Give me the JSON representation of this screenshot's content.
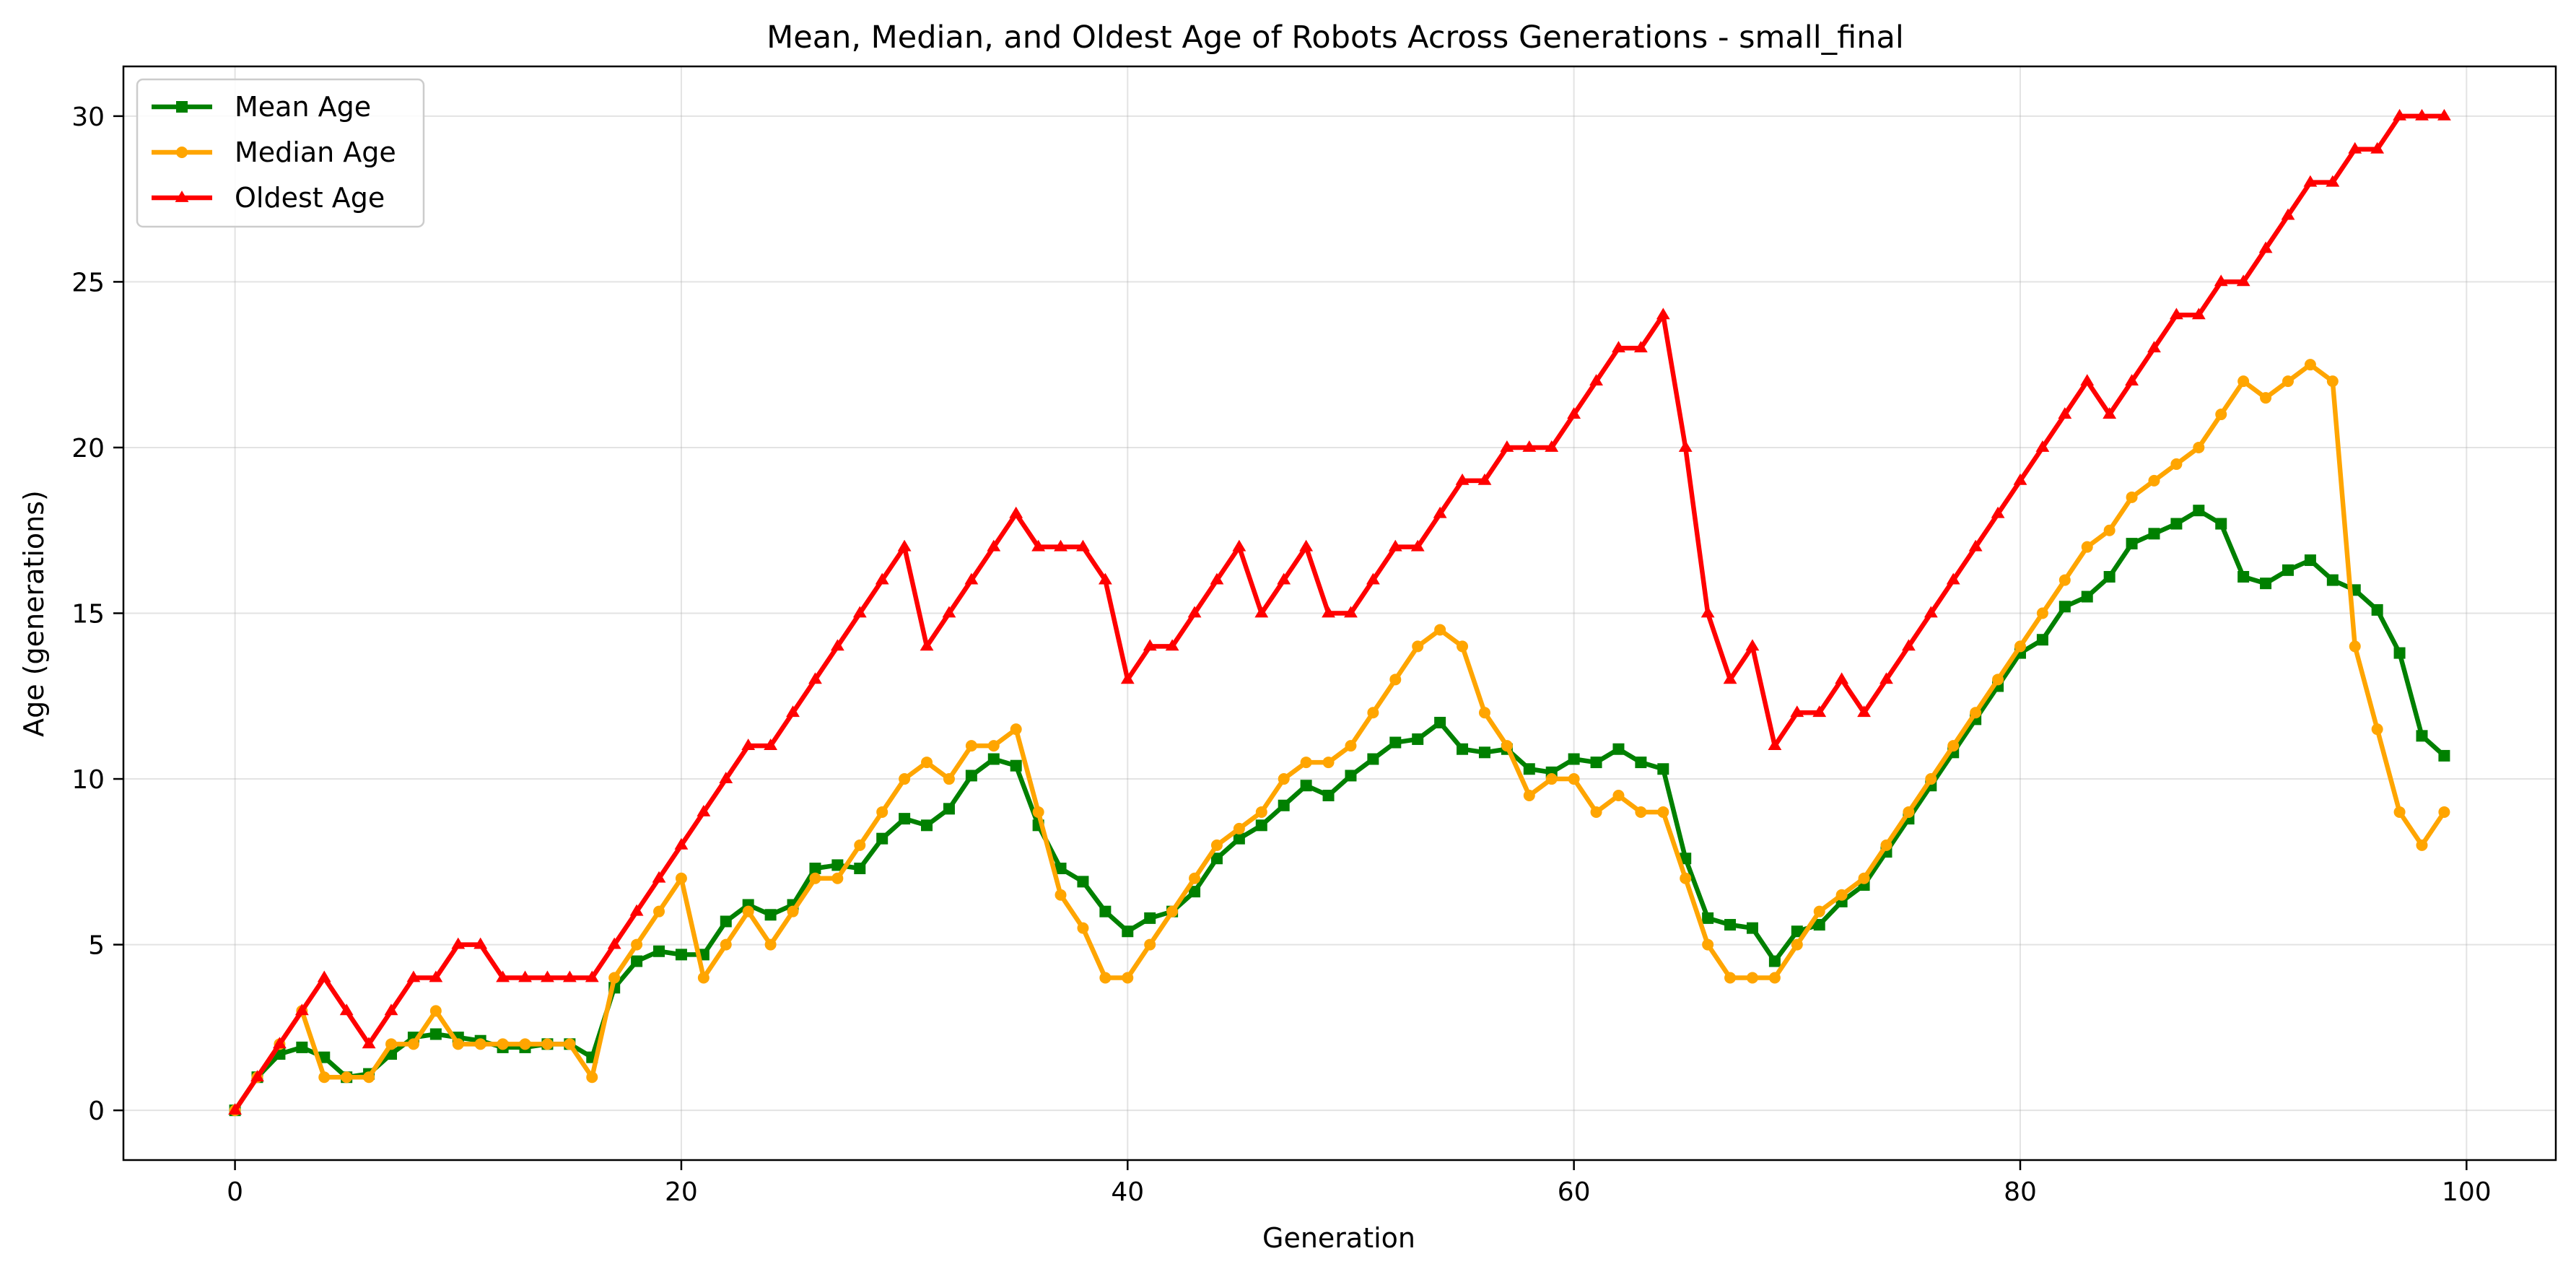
{
  "chart_data": {
    "type": "line",
    "title": "Mean, Median, and Oldest Age of Robots Across Generations - small_final",
    "xlabel": "Generation",
    "ylabel": "Age (generations)",
    "xlim": [
      -5,
      104
    ],
    "ylim": [
      -1.5,
      31.5
    ],
    "xticks": [
      0,
      20,
      40,
      60,
      80,
      100
    ],
    "yticks": [
      0,
      5,
      10,
      15,
      20,
      25,
      30
    ],
    "grid": true,
    "legend_position": "top-left",
    "x": [
      0,
      1,
      2,
      3,
      4,
      5,
      6,
      7,
      8,
      9,
      10,
      11,
      12,
      13,
      14,
      15,
      16,
      17,
      18,
      19,
      20,
      21,
      22,
      23,
      24,
      25,
      26,
      27,
      28,
      29,
      30,
      31,
      32,
      33,
      34,
      35,
      36,
      37,
      38,
      39,
      40,
      41,
      42,
      43,
      44,
      45,
      46,
      47,
      48,
      49,
      50,
      51,
      52,
      53,
      54,
      55,
      56,
      57,
      58,
      59,
      60,
      61,
      62,
      63,
      64,
      65,
      66,
      67,
      68,
      69,
      70,
      71,
      72,
      73,
      74,
      75,
      76,
      77,
      78,
      79,
      80,
      81,
      82,
      83,
      84,
      85,
      86,
      87,
      88,
      89,
      90,
      91,
      92,
      93,
      94,
      95,
      96,
      97,
      98,
      99
    ],
    "series": [
      {
        "name": "Mean Age",
        "color": "#008000",
        "marker": "square",
        "values": [
          0,
          1,
          1.7,
          1.9,
          1.6,
          1,
          1.1,
          1.7,
          2.2,
          2.3,
          2.2,
          2.1,
          1.9,
          1.9,
          2.0,
          2.0,
          1.6,
          3.7,
          4.5,
          4.8,
          4.7,
          4.7,
          5.7,
          6.2,
          5.9,
          6.2,
          7.3,
          7.4,
          7.3,
          8.2,
          8.8,
          8.6,
          9.1,
          10.1,
          10.6,
          10.4,
          8.6,
          7.3,
          6.9,
          6.0,
          5.4,
          5.8,
          6.0,
          6.6,
          7.6,
          8.2,
          8.6,
          9.2,
          9.8,
          9.5,
          10.1,
          10.6,
          11.1,
          11.2,
          11.7,
          10.9,
          10.8,
          10.9,
          10.3,
          10.2,
          10.6,
          10.5,
          10.9,
          10.5,
          10.3,
          7.6,
          5.8,
          5.6,
          5.5,
          4.5,
          5.4,
          5.6,
          6.3,
          6.8,
          7.8,
          8.8,
          9.8,
          10.8,
          11.8,
          12.8,
          13.8,
          14.2,
          15.2,
          15.5,
          16.1,
          17.1,
          17.4,
          17.7,
          18.1,
          17.7,
          16.1,
          15.9,
          16.3,
          16.6,
          16.0,
          15.7,
          15.1,
          13.8,
          11.3,
          10.7
        ]
      },
      {
        "name": "Median Age",
        "color": "#ffa500",
        "marker": "circle",
        "values": [
          0,
          1,
          2,
          3,
          1,
          1,
          1,
          2,
          2,
          3,
          2,
          2,
          2,
          2,
          2,
          2,
          1,
          4,
          5,
          6,
          7,
          4,
          5,
          6,
          5,
          6,
          7,
          7,
          8,
          9,
          10,
          10.5,
          10,
          11,
          11,
          11.5,
          9,
          6.5,
          5.5,
          4,
          4,
          5,
          6,
          7,
          8,
          8.5,
          9,
          10,
          10.5,
          10.5,
          11,
          12,
          13,
          14,
          14.5,
          14,
          12,
          11,
          9.5,
          10,
          10,
          9,
          9.5,
          9,
          9,
          7,
          5,
          4,
          4,
          4,
          5,
          6,
          6.5,
          7,
          8,
          9,
          10,
          11,
          12,
          13,
          14,
          15,
          16,
          17,
          17.5,
          18.5,
          19,
          19.5,
          20,
          21,
          22,
          21.5,
          22,
          22.5,
          22,
          14,
          11.5,
          9,
          8,
          9
        ]
      },
      {
        "name": "Oldest Age",
        "color": "#ff0000",
        "marker": "triangle",
        "values": [
          0,
          1,
          2,
          3,
          4,
          3,
          2,
          3,
          4,
          4,
          5,
          5,
          4,
          4,
          4,
          4,
          4,
          5,
          6,
          7,
          8,
          9,
          10,
          11,
          11,
          12,
          13,
          14,
          15,
          16,
          17,
          14,
          15,
          16,
          17,
          18,
          17,
          17,
          17,
          16,
          13,
          14,
          14,
          15,
          16,
          17,
          15,
          16,
          17,
          15,
          15,
          16,
          17,
          17,
          18,
          19,
          19,
          20,
          20,
          20,
          21,
          22,
          23,
          23,
          24,
          20,
          15,
          13,
          14,
          11,
          12,
          12,
          13,
          12,
          13,
          14,
          15,
          16,
          17,
          18,
          19,
          20,
          21,
          22,
          21,
          22,
          23,
          24,
          24,
          25,
          25,
          26,
          27,
          28,
          28,
          29,
          29,
          30,
          30,
          30
        ]
      }
    ]
  }
}
